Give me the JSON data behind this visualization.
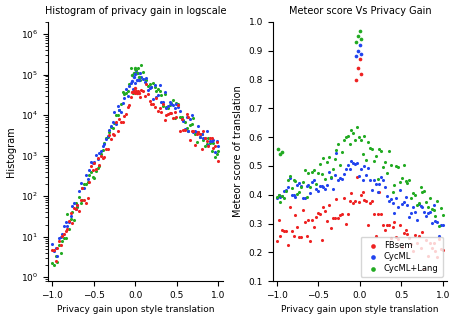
{
  "title_left": "Histogram of privacy gain in logscale",
  "title_right": "Meteor score Vs Privacy Gain",
  "xlabel": "Privacy gain upon style translation",
  "ylabel_left": "Histogram",
  "ylabel_right": "Meteor score of translation",
  "colors": {
    "FBsem": "#ee2222",
    "CycML": "#2244ee",
    "CycMLLang": "#22aa22"
  },
  "legend_labels": [
    "FBsem",
    "CycML",
    "CycML+Lang"
  ],
  "xlim": [
    -1.05,
    1.05
  ],
  "ylim_left": [
    0.8,
    2000000
  ],
  "ylim_right": [
    0.1,
    1.0
  ],
  "seed": 42
}
